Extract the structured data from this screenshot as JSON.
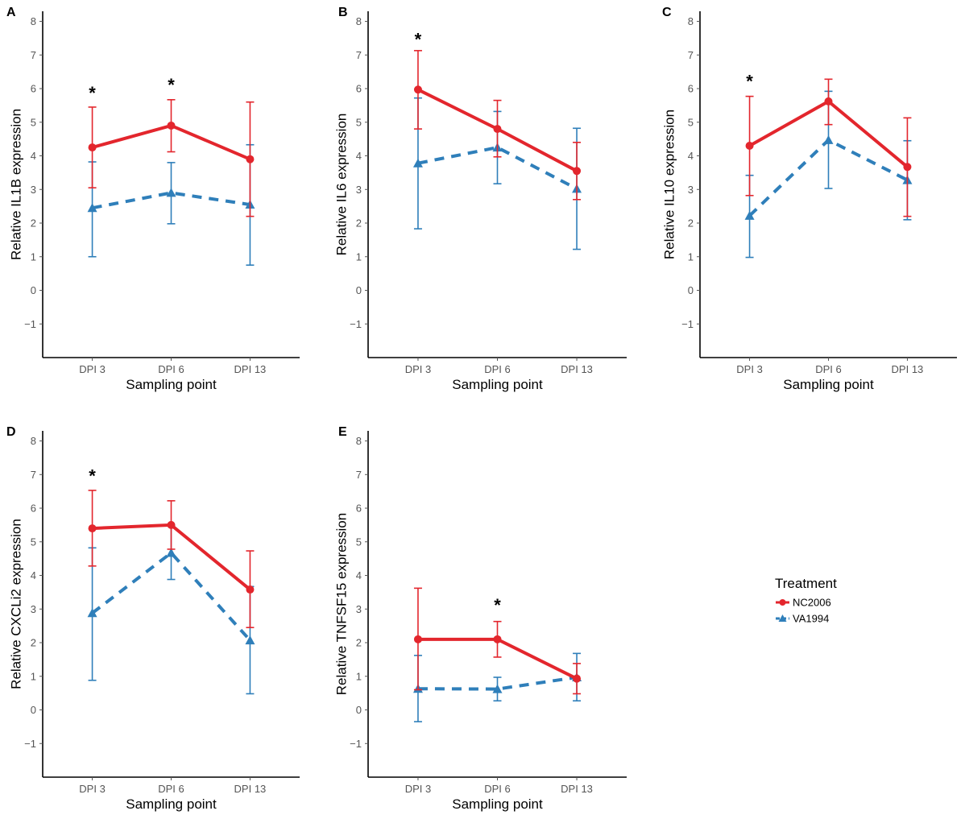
{
  "colors": {
    "nc2006": "#e3262d",
    "va1994": "#2f7fba",
    "axis": "#000000",
    "tick": "#555555"
  },
  "legend": {
    "title": "Treatment",
    "items": [
      {
        "name": "NC2006",
        "color": "#e3262d",
        "marker": "circle",
        "linestyle": "solid"
      },
      {
        "name": "VA1994",
        "color": "#2f7fba",
        "marker": "triangle",
        "linestyle": "dashed"
      }
    ]
  },
  "chart_data": [
    {
      "panel": "A",
      "type": "line",
      "xlabel": "Sampling point",
      "ylabel": "Relative IL1B expression",
      "categories": [
        "DPI 3",
        "DPI 6",
        "DPI 13"
      ],
      "ylim": [
        -2,
        8.3
      ],
      "yticks": [
        "−1",
        "0",
        "1",
        "2",
        "3",
        "4",
        "5",
        "6",
        "7",
        "8"
      ],
      "series": [
        {
          "name": "NC2006",
          "values": [
            4.25,
            4.9,
            3.9
          ],
          "err_low": [
            3.05,
            4.12,
            2.2
          ],
          "err_high": [
            5.45,
            5.67,
            5.6
          ]
        },
        {
          "name": "VA1994",
          "values": [
            2.45,
            2.9,
            2.55
          ],
          "err_low": [
            1.0,
            1.98,
            0.75
          ],
          "err_high": [
            3.82,
            3.8,
            4.33
          ]
        }
      ],
      "annotations": [
        {
          "category": "DPI 3",
          "y": 5.9,
          "text": "*"
        },
        {
          "category": "DPI 6",
          "y": 6.15,
          "text": "*"
        }
      ]
    },
    {
      "panel": "B",
      "type": "line",
      "xlabel": "Sampling point",
      "ylabel": "Relative IL6 expression",
      "categories": [
        "DPI 3",
        "DPI 6",
        "DPI 13"
      ],
      "ylim": [
        -2,
        8.3
      ],
      "yticks": [
        "−1",
        "0",
        "1",
        "2",
        "3",
        "4",
        "5",
        "6",
        "7",
        "8"
      ],
      "series": [
        {
          "name": "NC2006",
          "values": [
            5.97,
            4.8,
            3.55
          ],
          "err_low": [
            4.8,
            3.97,
            2.7
          ],
          "err_high": [
            7.13,
            5.65,
            4.4
          ]
        },
        {
          "name": "VA1994",
          "values": [
            3.78,
            4.25,
            3.02
          ],
          "err_low": [
            1.83,
            3.17,
            1.22
          ],
          "err_high": [
            5.72,
            5.32,
            4.82
          ]
        }
      ],
      "annotations": [
        {
          "category": "DPI 3",
          "y": 7.5,
          "text": "*"
        }
      ]
    },
    {
      "panel": "C",
      "type": "line",
      "xlabel": "Sampling point",
      "ylabel": "Relative IL10 expression",
      "categories": [
        "DPI 3",
        "DPI 6",
        "DPI 13"
      ],
      "ylim": [
        -2,
        8.3
      ],
      "yticks": [
        "−1",
        "0",
        "1",
        "2",
        "3",
        "4",
        "5",
        "6",
        "7",
        "8"
      ],
      "series": [
        {
          "name": "NC2006",
          "values": [
            4.3,
            5.62,
            3.67
          ],
          "err_low": [
            2.82,
            4.93,
            2.2
          ],
          "err_high": [
            5.77,
            6.28,
            5.13
          ]
        },
        {
          "name": "VA1994",
          "values": [
            2.22,
            4.47,
            3.28
          ],
          "err_low": [
            0.98,
            3.03,
            2.1
          ],
          "err_high": [
            3.42,
            5.92,
            4.45
          ]
        }
      ],
      "annotations": [
        {
          "category": "DPI 3",
          "y": 6.25,
          "text": "*"
        }
      ]
    },
    {
      "panel": "D",
      "type": "line",
      "xlabel": "Sampling point",
      "ylabel": "Relative CXCLi2 expression",
      "categories": [
        "DPI 3",
        "DPI 6",
        "DPI 13"
      ],
      "ylim": [
        -2,
        8.3
      ],
      "yticks": [
        "−1",
        "0",
        "1",
        "2",
        "3",
        "4",
        "5",
        "6",
        "7",
        "8"
      ],
      "series": [
        {
          "name": "NC2006",
          "values": [
            5.4,
            5.5,
            3.58
          ],
          "err_low": [
            4.28,
            4.78,
            2.45
          ],
          "err_high": [
            6.53,
            6.22,
            4.73
          ]
        },
        {
          "name": "VA1994",
          "values": [
            2.88,
            4.67,
            2.07
          ],
          "err_low": [
            0.88,
            3.88,
            0.48
          ],
          "err_high": [
            4.82,
            5.48,
            3.67
          ]
        }
      ],
      "annotations": [
        {
          "category": "DPI 3",
          "y": 7.0,
          "text": "*"
        }
      ]
    },
    {
      "panel": "E",
      "type": "line",
      "xlabel": "Sampling point",
      "ylabel": "Relative TNFSF15 expression",
      "categories": [
        "DPI 3",
        "DPI 6",
        "DPI 13"
      ],
      "ylim": [
        -2,
        8.3
      ],
      "yticks": [
        "−1",
        "0",
        "1",
        "2",
        "3",
        "4",
        "5",
        "6",
        "7",
        "8"
      ],
      "series": [
        {
          "name": "NC2006",
          "values": [
            2.1,
            2.1,
            0.93
          ],
          "err_low": [
            0.6,
            1.57,
            0.48
          ],
          "err_high": [
            3.62,
            2.63,
            1.38
          ]
        },
        {
          "name": "VA1994",
          "values": [
            0.63,
            0.62,
            0.97
          ],
          "err_low": [
            -0.35,
            0.27,
            0.27
          ],
          "err_high": [
            1.62,
            0.97,
            1.68
          ]
        }
      ],
      "annotations": [
        {
          "category": "DPI 6",
          "y": 3.15,
          "text": "*"
        }
      ]
    }
  ]
}
